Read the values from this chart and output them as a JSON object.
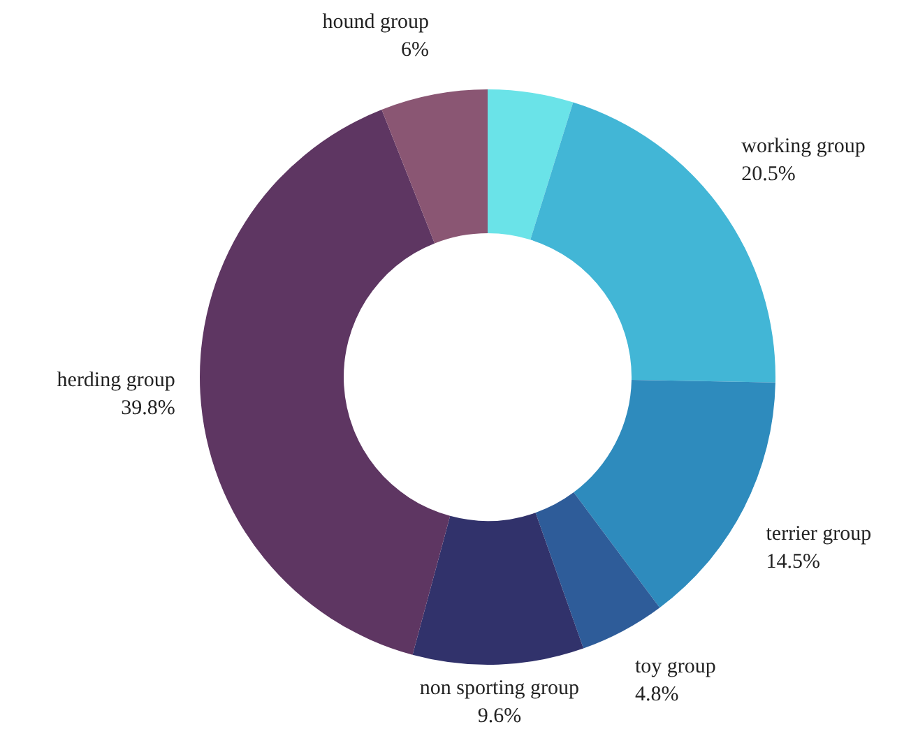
{
  "chart_data": {
    "type": "donut",
    "categories": [
      null,
      "working group",
      "terrier group",
      "toy group",
      "non sporting group",
      "herding group",
      "hound group"
    ],
    "values": [
      4.8,
      20.5,
      14.5,
      4.8,
      9.6,
      39.8,
      6
    ],
    "value_labels": [
      null,
      "20.5%",
      "14.5%",
      "4.8%",
      "9.6%",
      "39.8%",
      "6%"
    ],
    "colors": [
      "#6ae3e8",
      "#42b6d6",
      "#2e8bbd",
      "#2e5c99",
      "#31326b",
      "#5e3662",
      "#8a5673"
    ]
  }
}
